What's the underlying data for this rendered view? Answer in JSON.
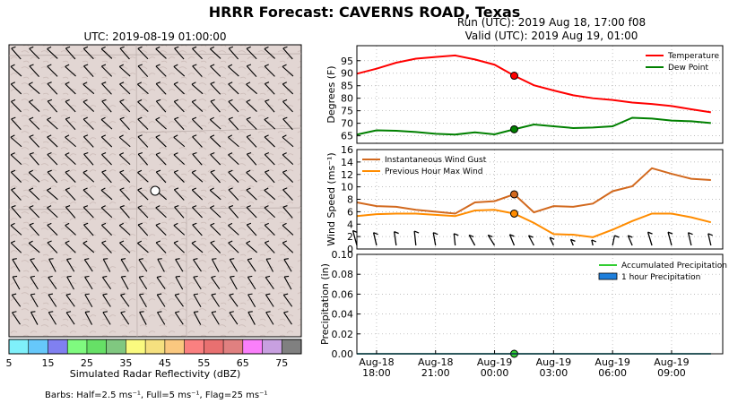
{
  "title": "HRRR Forecast: CAVERNS ROAD, Texas",
  "map": {
    "title": "UTC: 2019-08-19 01:00:00",
    "colorbar": {
      "label": "Simulated Radar Reflectivity (dBZ)",
      "ticks": [
        "5",
        "15",
        "25",
        "35",
        "45",
        "55",
        "65",
        "75"
      ],
      "colors": [
        "#7ff0fa",
        "#66c8fa",
        "#8080f0",
        "#7ffa7f",
        "#66e066",
        "#80c880",
        "#fafa7f",
        "#f5e07f",
        "#fac87f",
        "#fa8080",
        "#e87070",
        "#e08080",
        "#fa7ffa",
        "#c8a0e0",
        "#808080"
      ]
    },
    "barbs_note": "Barbs: Half=2.5 ms⁻¹, Full=5 ms⁻¹, Flag=25 ms⁻¹"
  },
  "run_title": {
    "line1": "Run (UTC): 2019 Aug 18, 17:00 f08",
    "line2": "Valid (UTC): 2019 Aug 19, 01:00"
  },
  "x_ticks": [
    {
      "hour": 1,
      "line1": "Aug-18",
      "line2": "18:00"
    },
    {
      "hour": 4,
      "line1": "Aug-18",
      "line2": "21:00"
    },
    {
      "hour": 7,
      "line1": "Aug-19",
      "line2": "00:00"
    },
    {
      "hour": 10,
      "line1": "Aug-19",
      "line2": "03:00"
    },
    {
      "hour": 13,
      "line1": "Aug-19",
      "line2": "06:00"
    },
    {
      "hour": 16,
      "line1": "Aug-19",
      "line2": "09:00"
    }
  ],
  "chart_data": [
    {
      "type": "line",
      "ylabel": "Degrees (F)",
      "ylim": [
        62,
        101
      ],
      "yticks": [
        65,
        70,
        75,
        80,
        85,
        90,
        95
      ],
      "x": [
        0,
        1,
        2,
        3,
        4,
        5,
        6,
        7,
        8,
        9,
        10,
        11,
        12,
        13,
        14,
        15,
        16,
        17,
        18
      ],
      "series": [
        {
          "name": "Temperature",
          "color": "#ff0000",
          "values": [
            89.8,
            91.8,
            94.2,
            95.8,
            96.5,
            97.1,
            95.5,
            93.4,
            89.0,
            85.2,
            83.1,
            81.2,
            80.0,
            79.3,
            78.3,
            77.7,
            76.9,
            75.6,
            74.4
          ]
        },
        {
          "name": "Dew Point",
          "color": "#008000",
          "values": [
            65.5,
            67.2,
            67.0,
            66.5,
            65.8,
            65.5,
            66.4,
            65.6,
            67.6,
            69.5,
            68.8,
            68.1,
            68.3,
            68.8,
            72.2,
            71.9,
            71.1,
            70.8,
            70.1
          ]
        }
      ],
      "highlight_hour": 8,
      "grid": true,
      "legend": "top-right"
    },
    {
      "type": "line",
      "ylabel": "Wind Speed (ms⁻¹)",
      "ylim": [
        0,
        16
      ],
      "yticks": [
        0,
        2,
        4,
        6,
        8,
        10,
        12,
        14,
        16
      ],
      "x": [
        0,
        1,
        2,
        3,
        4,
        5,
        6,
        7,
        8,
        9,
        10,
        11,
        12,
        13,
        14,
        15,
        16,
        17,
        18
      ],
      "series": [
        {
          "name": "Instantaneous Wind Gust",
          "color": "#d2691e",
          "values": [
            7.5,
            6.9,
            6.8,
            6.3,
            6.0,
            5.7,
            7.5,
            7.7,
            8.8,
            5.9,
            6.9,
            6.8,
            7.3,
            9.3,
            10.1,
            13.0,
            12.1,
            11.3,
            11.1
          ]
        },
        {
          "name": "Previous Hour Max Wind",
          "color": "#ff8c00",
          "values": [
            5.3,
            5.6,
            5.7,
            5.7,
            5.5,
            5.3,
            6.2,
            6.3,
            5.7,
            4.2,
            2.4,
            2.3,
            1.9,
            3.1,
            4.5,
            5.7,
            5.7,
            5.1,
            4.3
          ]
        }
      ],
      "wind_barbs": [
        {
          "u": -1.6,
          "v": 3.0
        },
        {
          "u": -1.2,
          "v": 2.6
        },
        {
          "u": -0.8,
          "v": 2.8
        },
        {
          "u": -0.6,
          "v": 2.9
        },
        {
          "u": -0.9,
          "v": 2.6
        },
        {
          "u": -0.5,
          "v": 2.4
        },
        {
          "u": -2.3,
          "v": 2.1
        },
        {
          "u": -2.6,
          "v": 2.1
        },
        {
          "u": -1.8,
          "v": 2.2
        },
        {
          "u": -2.1,
          "v": 2.0
        },
        {
          "u": -1.5,
          "v": 1.6
        },
        {
          "u": -1.0,
          "v": 1.2
        },
        {
          "u": -0.5,
          "v": 1.1
        },
        {
          "u": 0.8,
          "v": 2.0
        },
        {
          "u": -1.7,
          "v": 2.0
        },
        {
          "u": -1.6,
          "v": 2.7
        },
        {
          "u": -1.4,
          "v": 2.7
        },
        {
          "u": -1.2,
          "v": 2.6
        },
        {
          "u": -1.1,
          "v": 2.4
        }
      ],
      "highlight_hour": 8,
      "grid": true,
      "legend": "top-left"
    },
    {
      "type": "line",
      "ylabel": "Precipitation (in)",
      "ylim": [
        0,
        0.1
      ],
      "yticks": [
        "0.00",
        "0.02",
        "0.04",
        "0.06",
        "0.08",
        "0.10"
      ],
      "x": [
        0,
        1,
        2,
        3,
        4,
        5,
        6,
        7,
        8,
        9,
        10,
        11,
        12,
        13,
        14,
        15,
        16,
        17,
        18
      ],
      "series": [
        {
          "name": "Accumulated Precipitation",
          "color": "#32cd32",
          "values": [
            0,
            0,
            0,
            0,
            0,
            0,
            0,
            0,
            0,
            0,
            0,
            0,
            0,
            0,
            0,
            0,
            0,
            0,
            0
          ]
        },
        {
          "name": "1 hour Precipitation",
          "color": "#1e7fdc",
          "values": [
            0,
            0,
            0,
            0,
            0,
            0,
            0,
            0,
            0,
            0,
            0,
            0,
            0,
            0,
            0,
            0,
            0,
            0,
            0
          ]
        }
      ],
      "highlight_hour": 8,
      "grid": true,
      "legend": "top-right"
    }
  ]
}
